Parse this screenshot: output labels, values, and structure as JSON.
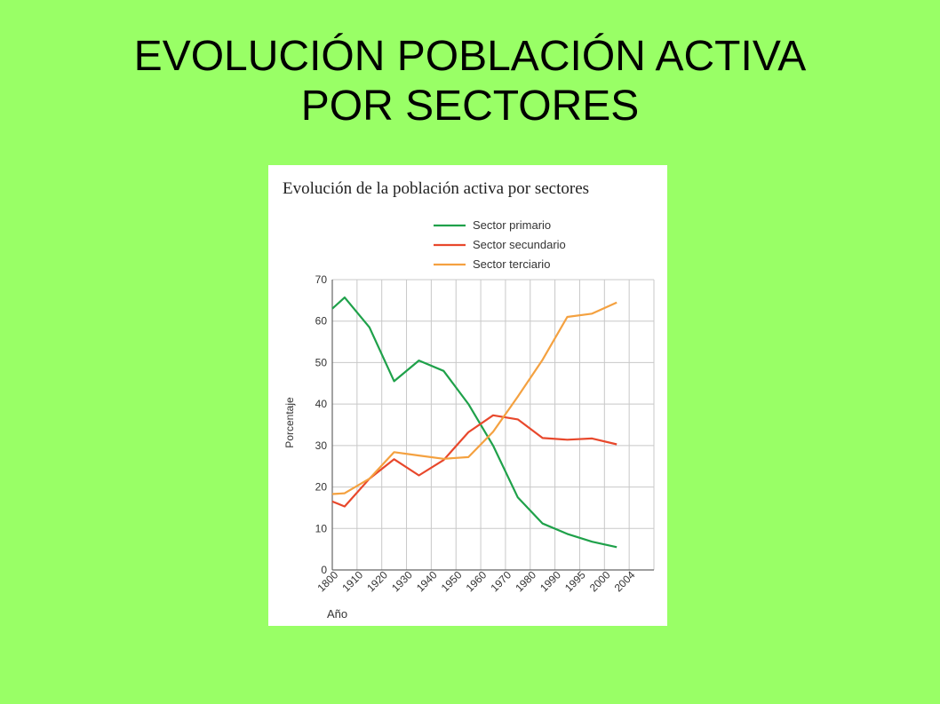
{
  "slide": {
    "title_line1": "EVOLUCIÓN POBLACIÓN ACTIVA",
    "title_line2": "POR SECTORES"
  },
  "chart_data": {
    "type": "line",
    "title": "Evolución de la población activa por sectores",
    "xlabel": "Año",
    "ylabel": "Porcentaje",
    "categories": [
      "1800",
      "1910",
      "1920",
      "1930",
      "1940",
      "1950",
      "1960",
      "1970",
      "1980",
      "1990",
      "1995",
      "2000",
      "2004"
    ],
    "ylim": [
      0,
      70
    ],
    "yticks": [
      0,
      10,
      20,
      30,
      40,
      50,
      60,
      70
    ],
    "grid": true,
    "legend_position": "top",
    "series": [
      {
        "name": "Sector primario",
        "color": "#1fa14a",
        "points": [
          [
            0,
            63
          ],
          [
            0.5,
            65.7
          ],
          [
            1.5,
            58.5
          ],
          [
            2.5,
            45.5
          ],
          [
            3.5,
            50.5
          ],
          [
            4.5,
            48
          ],
          [
            5.5,
            40
          ],
          [
            6.5,
            30
          ],
          [
            7.5,
            17.5
          ],
          [
            8.5,
            11.2
          ],
          [
            9.5,
            8.7
          ],
          [
            10.5,
            6.8
          ],
          [
            11.5,
            5.5
          ]
        ]
      },
      {
        "name": "Sector secundario",
        "color": "#e8482c",
        "points": [
          [
            0,
            16.5
          ],
          [
            0.5,
            15.3
          ],
          [
            1.5,
            22
          ],
          [
            2.5,
            26.7
          ],
          [
            3.5,
            22.8
          ],
          [
            4.5,
            26.5
          ],
          [
            5.5,
            33.2
          ],
          [
            6.5,
            37.3
          ],
          [
            7.5,
            36.3
          ],
          [
            8.5,
            31.8
          ],
          [
            9.5,
            31.4
          ],
          [
            10.5,
            31.7
          ],
          [
            11.5,
            30.3
          ]
        ]
      },
      {
        "name": "Sector terciario",
        "color": "#f4a140",
        "points": [
          [
            0,
            18.3
          ],
          [
            0.5,
            18.5
          ],
          [
            1.5,
            22
          ],
          [
            2.5,
            28.4
          ],
          [
            3.5,
            27.6
          ],
          [
            4.5,
            26.8
          ],
          [
            5.5,
            27.2
          ],
          [
            6.5,
            33.3
          ],
          [
            7.5,
            41.8
          ],
          [
            8.5,
            50.7
          ],
          [
            9.5,
            61
          ],
          [
            10.5,
            61.8
          ],
          [
            11.5,
            64.5
          ]
        ]
      }
    ]
  }
}
